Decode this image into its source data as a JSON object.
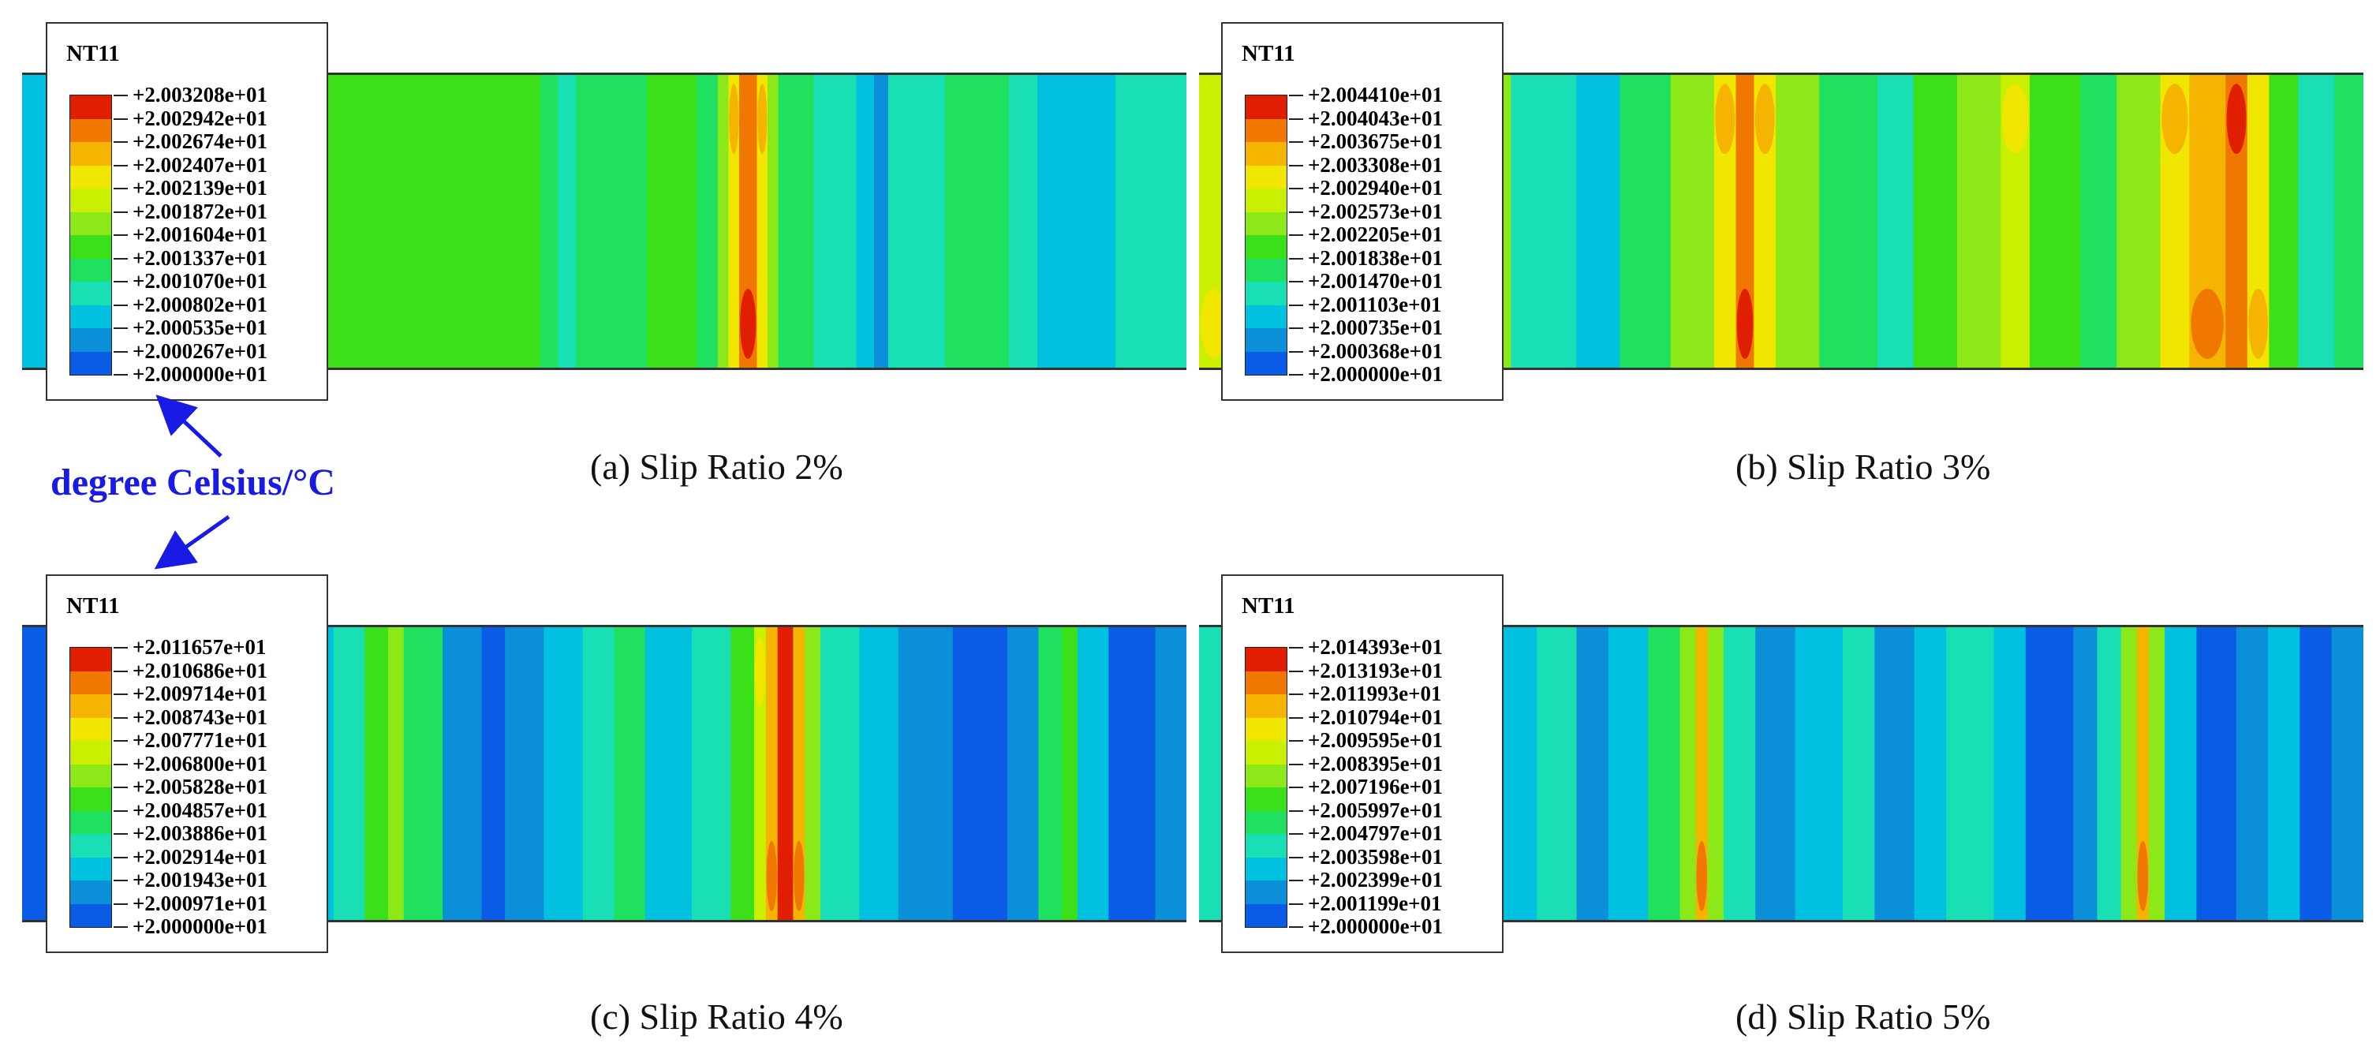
{
  "unit_annotation": "degree Celsius/°C",
  "colors": {
    "scale": [
      "#0000ff",
      "#0a5be6",
      "#0a8fd8",
      "#00c2e0",
      "#18e0b4",
      "#20e060",
      "#3ce018",
      "#8ce818",
      "#c8f000",
      "#f0e600",
      "#f5b400",
      "#f07800",
      "#e01e00"
    ],
    "annotation": "#1a1ae6"
  },
  "panels": [
    {
      "id": "a",
      "caption": "(a) Slip Ratio 2%",
      "legend_title": "NT11",
      "legend_labels": [
        "+2.003208e+01",
        "+2.002942e+01",
        "+2.002674e+01",
        "+2.002407e+01",
        "+2.002139e+01",
        "+2.001872e+01",
        "+2.001604e+01",
        "+2.001337e+01",
        "+2.001070e+01",
        "+2.000802e+01",
        "+2.000535e+01",
        "+2.000267e+01",
        "+2.000000e+01"
      ],
      "bands": [
        {
          "level": 3,
          "w": 36
        },
        {
          "level": 4,
          "w": 20
        },
        {
          "level": 5,
          "w": 14
        },
        {
          "level": 6,
          "w": 36
        },
        {
          "level": 6,
          "w": 40
        },
        {
          "level": 5,
          "w": 5
        },
        {
          "level": 4,
          "w": 5
        },
        {
          "level": 5,
          "w": 20
        },
        {
          "level": 6,
          "w": 14
        },
        {
          "level": 5,
          "w": 6
        },
        {
          "level": 7,
          "w": 3
        },
        {
          "level": 9,
          "w": 3
        },
        {
          "level": 11,
          "w": 5
        },
        {
          "level": 9,
          "w": 3
        },
        {
          "level": 7,
          "w": 3
        },
        {
          "level": 5,
          "w": 10
        },
        {
          "level": 4,
          "w": 12
        },
        {
          "level": 3,
          "w": 5
        },
        {
          "level": 2,
          "w": 4
        },
        {
          "level": 4,
          "w": 16
        },
        {
          "level": 5,
          "w": 18
        },
        {
          "level": 4,
          "w": 8
        },
        {
          "level": 3,
          "w": 22
        },
        {
          "level": 4,
          "w": 20
        }
      ]
    },
    {
      "id": "b",
      "caption": "(b) Slip Ratio 3%",
      "legend_title": "NT11",
      "legend_labels": [
        "+2.004410e+01",
        "+2.004043e+01",
        "+2.003675e+01",
        "+2.003308e+01",
        "+2.002940e+01",
        "+2.002573e+01",
        "+2.002205e+01",
        "+2.001838e+01",
        "+2.001470e+01",
        "+2.001103e+01",
        "+2.000735e+01",
        "+2.000368e+01",
        "+2.000000e+01"
      ],
      "bands": [
        {
          "level": 8,
          "w": 8
        },
        {
          "level": 11,
          "w": 6
        },
        {
          "level": 7,
          "w": 10
        },
        {
          "level": 6,
          "w": 18
        },
        {
          "level": 7,
          "w": 8
        },
        {
          "level": 9,
          "w": 12
        },
        {
          "level": 10,
          "w": 6
        },
        {
          "level": 9,
          "w": 10
        },
        {
          "level": 7,
          "w": 8
        },
        {
          "level": 4,
          "w": 18
        },
        {
          "level": 3,
          "w": 12
        },
        {
          "level": 5,
          "w": 14
        },
        {
          "level": 7,
          "w": 12
        },
        {
          "level": 9,
          "w": 6
        },
        {
          "level": 11,
          "w": 5
        },
        {
          "level": 9,
          "w": 6
        },
        {
          "level": 7,
          "w": 12
        },
        {
          "level": 5,
          "w": 16
        },
        {
          "level": 4,
          "w": 10
        },
        {
          "level": 6,
          "w": 12
        },
        {
          "level": 7,
          "w": 12
        },
        {
          "level": 8,
          "w": 8
        },
        {
          "level": 6,
          "w": 14
        },
        {
          "level": 5,
          "w": 10
        },
        {
          "level": 7,
          "w": 12
        },
        {
          "level": 9,
          "w": 8
        },
        {
          "level": 10,
          "w": 10
        },
        {
          "level": 11,
          "w": 6
        },
        {
          "level": 9,
          "w": 6
        },
        {
          "level": 6,
          "w": 8
        },
        {
          "level": 4,
          "w": 10
        },
        {
          "level": 5,
          "w": 8
        }
      ]
    },
    {
      "id": "c",
      "caption": "(c) Slip Ratio 4%",
      "legend_title": "NT11",
      "legend_labels": [
        "+2.011657e+01",
        "+2.010686e+01",
        "+2.009714e+01",
        "+2.008743e+01",
        "+2.007771e+01",
        "+2.006800e+01",
        "+2.005828e+01",
        "+2.004857e+01",
        "+2.003886e+01",
        "+2.002914e+01",
        "+2.001943e+01",
        "+2.000971e+01",
        "+2.000000e+01"
      ],
      "bands": [
        {
          "level": 1,
          "w": 8
        },
        {
          "level": 2,
          "w": 10
        },
        {
          "level": 3,
          "w": 18
        },
        {
          "level": 4,
          "w": 10
        },
        {
          "level": 3,
          "w": 22
        },
        {
          "level": 3,
          "w": 12
        },
        {
          "level": 4,
          "w": 8
        },
        {
          "level": 6,
          "w": 6
        },
        {
          "level": 7,
          "w": 4
        },
        {
          "level": 5,
          "w": 10
        },
        {
          "level": 2,
          "w": 10
        },
        {
          "level": 1,
          "w": 6
        },
        {
          "level": 2,
          "w": 10
        },
        {
          "level": 3,
          "w": 10
        },
        {
          "level": 4,
          "w": 8
        },
        {
          "level": 5,
          "w": 8
        },
        {
          "level": 3,
          "w": 12
        },
        {
          "level": 4,
          "w": 10
        },
        {
          "level": 6,
          "w": 6
        },
        {
          "level": 8,
          "w": 3
        },
        {
          "level": 10,
          "w": 3
        },
        {
          "level": 12,
          "w": 4
        },
        {
          "level": 10,
          "w": 3
        },
        {
          "level": 7,
          "w": 4
        },
        {
          "level": 4,
          "w": 10
        },
        {
          "level": 3,
          "w": 10
        },
        {
          "level": 2,
          "w": 14
        },
        {
          "level": 1,
          "w": 14
        },
        {
          "level": 2,
          "w": 8
        },
        {
          "level": 5,
          "w": 6
        },
        {
          "level": 6,
          "w": 4
        },
        {
          "level": 3,
          "w": 8
        },
        {
          "level": 1,
          "w": 12
        },
        {
          "level": 2,
          "w": 8
        }
      ]
    },
    {
      "id": "d",
      "caption": "(d) Slip Ratio 5%",
      "legend_title": "NT11",
      "legend_labels": [
        "+2.014393e+01",
        "+2.013193e+01",
        "+2.011993e+01",
        "+2.010794e+01",
        "+2.009595e+01",
        "+2.008395e+01",
        "+2.007196e+01",
        "+2.005997e+01",
        "+2.004797e+01",
        "+2.003598e+01",
        "+2.002399e+01",
        "+2.001199e+01",
        "+2.000000e+01"
      ],
      "bands": [
        {
          "level": 4,
          "w": 6
        },
        {
          "level": 3,
          "w": 8
        },
        {
          "level": 2,
          "w": 14
        },
        {
          "level": 4,
          "w": 6
        },
        {
          "level": 6,
          "w": 6
        },
        {
          "level": 8,
          "w": 5
        },
        {
          "level": 5,
          "w": 4
        },
        {
          "level": 2,
          "w": 8
        },
        {
          "level": 1,
          "w": 6
        },
        {
          "level": 2,
          "w": 8
        },
        {
          "level": 3,
          "w": 14
        },
        {
          "level": 4,
          "w": 10
        },
        {
          "level": 2,
          "w": 8
        },
        {
          "level": 3,
          "w": 10
        },
        {
          "level": 5,
          "w": 8
        },
        {
          "level": 7,
          "w": 4
        },
        {
          "level": 10,
          "w": 3
        },
        {
          "level": 7,
          "w": 4
        },
        {
          "level": 4,
          "w": 8
        },
        {
          "level": 2,
          "w": 10
        },
        {
          "level": 3,
          "w": 12
        },
        {
          "level": 4,
          "w": 8
        },
        {
          "level": 2,
          "w": 10
        },
        {
          "level": 3,
          "w": 8
        },
        {
          "level": 4,
          "w": 12
        },
        {
          "level": 3,
          "w": 8
        },
        {
          "level": 1,
          "w": 12
        },
        {
          "level": 2,
          "w": 6
        },
        {
          "level": 4,
          "w": 6
        },
        {
          "level": 7,
          "w": 4
        },
        {
          "level": 10,
          "w": 3
        },
        {
          "level": 7,
          "w": 4
        },
        {
          "level": 3,
          "w": 8
        },
        {
          "level": 1,
          "w": 10
        },
        {
          "level": 2,
          "w": 8
        },
        {
          "level": 3,
          "w": 8
        },
        {
          "level": 1,
          "w": 8
        },
        {
          "level": 2,
          "w": 8
        }
      ]
    }
  ]
}
